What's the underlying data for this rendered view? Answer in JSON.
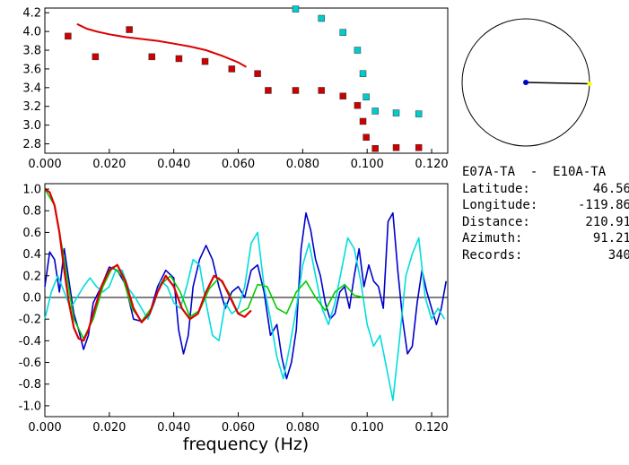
{
  "info": {
    "title": "E07A-TA  -  E10A-TA",
    "rows": [
      {
        "label": "Latitude:",
        "value": "46.56"
      },
      {
        "label": "Longitude:",
        "value": "-119.86"
      },
      {
        "label": "Distance:",
        "value": "210.91"
      },
      {
        "label": "Azimuth:",
        "value": "91.21"
      },
      {
        "label": "Records:",
        "value": "340"
      }
    ]
  },
  "chart_data": [
    {
      "type": "scatter",
      "title": "",
      "xlabel": "",
      "ylabel": "",
      "xlim": [
        0.0,
        0.125
      ],
      "ylim": [
        2.7,
        4.25
      ],
      "xticks": [
        "0.000",
        "0.020",
        "0.040",
        "0.060",
        "0.080",
        "0.100",
        "0.120"
      ],
      "yticks": [
        "2.8",
        "3.0",
        "3.2",
        "3.4",
        "3.6",
        "3.8",
        "4.0",
        "4.2"
      ],
      "series": [
        {
          "color": "#cc0000",
          "marker": "square",
          "x": [
            0.0072,
            0.0157,
            0.0262,
            0.0332,
            0.0416,
            0.0497,
            0.058,
            0.066,
            0.0693,
            0.0778,
            0.0858,
            0.0925,
            0.097,
            0.0987,
            0.0997,
            0.1025,
            0.109,
            0.116
          ],
          "y": [
            3.95,
            3.73,
            4.02,
            3.73,
            3.71,
            3.68,
            3.6,
            3.55,
            3.37,
            3.37,
            3.37,
            3.31,
            3.21,
            3.04,
            2.87,
            2.75,
            2.76,
            2.76
          ]
        },
        {
          "color": "#00cccc",
          "marker": "square",
          "x": [
            0.0778,
            0.0858,
            0.0925,
            0.097,
            0.0987,
            0.0997,
            0.1025,
            0.109,
            0.116
          ],
          "y": [
            4.24,
            4.14,
            3.99,
            3.8,
            3.55,
            3.3,
            3.15,
            3.13,
            3.12
          ]
        },
        {
          "color": "#dd0000",
          "type": "line",
          "x": [
            0.01,
            0.013,
            0.016,
            0.02,
            0.025,
            0.03,
            0.035,
            0.04,
            0.045,
            0.05,
            0.055,
            0.06,
            0.0625
          ],
          "y": [
            4.08,
            4.03,
            4.0,
            3.97,
            3.94,
            3.92,
            3.9,
            3.87,
            3.84,
            3.8,
            3.74,
            3.67,
            3.62
          ]
        }
      ]
    },
    {
      "type": "line",
      "title": "",
      "xlabel": "frequency (Hz)",
      "ylabel": "",
      "xlim": [
        0.0,
        0.125
      ],
      "ylim": [
        -1.1,
        1.05
      ],
      "xticks": [
        "0.000",
        "0.020",
        "0.040",
        "0.060",
        "0.080",
        "0.100",
        "0.120"
      ],
      "yticks": [
        "1.0",
        "0.8",
        "0.6",
        "0.4",
        "0.2",
        "0.0",
        "-0.2",
        "-0.4",
        "-0.6",
        "-0.8",
        "-1.0"
      ],
      "series": [
        {
          "color": "#0000cc",
          "x": [
            0,
            0.0015,
            0.003,
            0.0045,
            0.006,
            0.0075,
            0.009,
            0.0105,
            0.012,
            0.0135,
            0.015,
            0.0175,
            0.02,
            0.0225,
            0.025,
            0.0275,
            0.03,
            0.0325,
            0.035,
            0.0375,
            0.04,
            0.0415,
            0.043,
            0.0445,
            0.046,
            0.048,
            0.05,
            0.052,
            0.054,
            0.056,
            0.058,
            0.06,
            0.062,
            0.064,
            0.066,
            0.068,
            0.07,
            0.072,
            0.0735,
            0.075,
            0.0765,
            0.078,
            0.0795,
            0.081,
            0.0825,
            0.084,
            0.0855,
            0.087,
            0.0885,
            0.09,
            0.0915,
            0.093,
            0.0945,
            0.096,
            0.0975,
            0.099,
            0.1005,
            0.102,
            0.1035,
            0.105,
            0.1065,
            0.108,
            0.1095,
            0.111,
            0.1125,
            0.114,
            0.1155,
            0.117,
            0.1185,
            0.12,
            0.1215,
            0.123,
            0.1245
          ],
          "y": [
            0.1,
            0.42,
            0.35,
            0.05,
            0.45,
            0.15,
            -0.15,
            -0.3,
            -0.48,
            -0.35,
            -0.05,
            0.1,
            0.28,
            0.25,
            0.12,
            -0.2,
            -0.22,
            -0.15,
            0.1,
            0.25,
            0.18,
            -0.3,
            -0.52,
            -0.35,
            0.1,
            0.35,
            0.48,
            0.35,
            0.1,
            -0.1,
            0.05,
            0.1,
            0.0,
            0.25,
            0.3,
            0.05,
            -0.35,
            -0.25,
            -0.55,
            -0.75,
            -0.6,
            -0.3,
            0.45,
            0.78,
            0.62,
            0.35,
            0.2,
            -0.05,
            -0.2,
            -0.15,
            0.05,
            0.1,
            -0.1,
            0.2,
            0.45,
            0.1,
            0.3,
            0.15,
            0.1,
            -0.1,
            0.7,
            0.78,
            0.25,
            -0.2,
            -0.52,
            -0.45,
            -0.05,
            0.25,
            0.05,
            -0.1,
            -0.25,
            -0.1,
            0.15
          ]
        },
        {
          "color": "#00dddd",
          "x": [
            0,
            0.002,
            0.004,
            0.006,
            0.008,
            0.01,
            0.012,
            0.014,
            0.016,
            0.018,
            0.02,
            0.022,
            0.024,
            0.026,
            0.028,
            0.03,
            0.032,
            0.034,
            0.036,
            0.038,
            0.04,
            0.042,
            0.044,
            0.046,
            0.048,
            0.05,
            0.052,
            0.054,
            0.056,
            0.058,
            0.06,
            0.062,
            0.064,
            0.066,
            0.068,
            0.07,
            0.072,
            0.074,
            0.076,
            0.078,
            0.08,
            0.082,
            0.084,
            0.086,
            0.088,
            0.09,
            0.092,
            0.094,
            0.096,
            0.098,
            0.1,
            0.102,
            0.104,
            0.106,
            0.108,
            0.11,
            0.112,
            0.114,
            0.116,
            0.118,
            0.12,
            0.122,
            0.124
          ],
          "y": [
            -0.2,
            0.05,
            0.2,
            0.05,
            -0.1,
            0.0,
            0.1,
            0.18,
            0.1,
            0.05,
            0.1,
            0.25,
            0.25,
            0.08,
            0.0,
            -0.1,
            -0.2,
            -0.05,
            0.15,
            0.1,
            -0.05,
            -0.1,
            0.1,
            0.35,
            0.3,
            -0.05,
            -0.35,
            -0.4,
            -0.05,
            -0.15,
            -0.1,
            0.1,
            0.5,
            0.6,
            0.1,
            -0.2,
            -0.55,
            -0.75,
            -0.45,
            -0.1,
            0.3,
            0.5,
            0.2,
            -0.1,
            -0.25,
            -0.05,
            0.25,
            0.55,
            0.45,
            0.15,
            -0.25,
            -0.45,
            -0.35,
            -0.65,
            -0.95,
            -0.4,
            0.2,
            0.4,
            0.55,
            0.0,
            -0.2,
            -0.1,
            -0.2
          ]
        },
        {
          "color": "#00cc00",
          "x": [
            0,
            0.003,
            0.006,
            0.009,
            0.012,
            0.015,
            0.018,
            0.021,
            0.024,
            0.027,
            0.03,
            0.033,
            0.036,
            0.039,
            0.042,
            0.045,
            0.048,
            0.051,
            0.054,
            0.057,
            0.06,
            0.063,
            0.066,
            0.069,
            0.072,
            0.075,
            0.078,
            0.081,
            0.084,
            0.087,
            0.09,
            0.093,
            0.096,
            0.099
          ],
          "y": [
            1.0,
            0.85,
            0.35,
            -0.2,
            -0.38,
            -0.2,
            0.1,
            0.28,
            0.2,
            -0.1,
            -0.22,
            -0.1,
            0.12,
            0.2,
            0.05,
            -0.18,
            -0.12,
            0.08,
            0.18,
            0.05,
            -0.15,
            -0.1,
            0.12,
            0.1,
            -0.1,
            -0.15,
            0.05,
            0.15,
            0.0,
            -0.12,
            0.05,
            0.12,
            0.02,
            0.0
          ]
        },
        {
          "color": "#dd0000",
          "x": [
            0,
            0.0015,
            0.003,
            0.0045,
            0.006,
            0.0075,
            0.009,
            0.0105,
            0.012,
            0.0135,
            0.015,
            0.0175,
            0.02,
            0.0225,
            0.025,
            0.0275,
            0.03,
            0.0325,
            0.035,
            0.0375,
            0.04,
            0.0425,
            0.045,
            0.0475,
            0.05,
            0.0525,
            0.055,
            0.0575,
            0.06,
            0.062,
            0.064
          ],
          "y": [
            1.0,
            0.97,
            0.85,
            0.6,
            0.25,
            -0.05,
            -0.28,
            -0.38,
            -0.4,
            -0.3,
            -0.15,
            0.1,
            0.25,
            0.3,
            0.15,
            -0.1,
            -0.23,
            -0.15,
            0.05,
            0.2,
            0.1,
            -0.1,
            -0.2,
            -0.15,
            0.05,
            0.2,
            0.15,
            0.0,
            -0.15,
            -0.18,
            -0.12
          ]
        }
      ]
    },
    {
      "type": "other",
      "title": "",
      "azimuth_deg": 91.21,
      "line_color": "#000000",
      "center_color": "#0000cc",
      "end_color": "#ffff00"
    }
  ]
}
